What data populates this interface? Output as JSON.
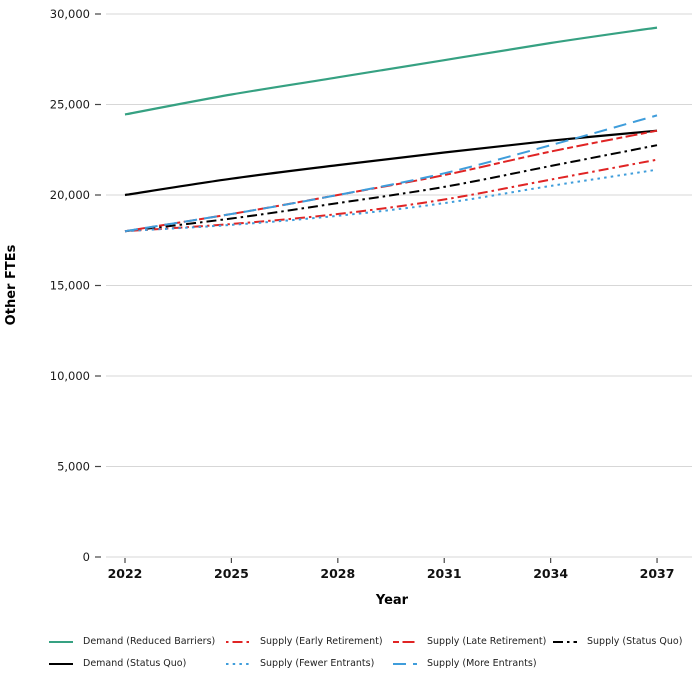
{
  "chart_data": {
    "type": "line",
    "title": "",
    "xlabel": "Year",
    "ylabel": "Other FTEs",
    "x": [
      2022,
      2025,
      2028,
      2031,
      2034,
      2037
    ],
    "x_tick_labels": [
      "2022",
      "2025",
      "2028",
      "2031",
      "2034",
      "2037"
    ],
    "y_ticks": [
      0,
      5000,
      10000,
      15000,
      20000,
      25000,
      30000
    ],
    "y_tick_labels": [
      "0",
      "5,000",
      "10,000",
      "15,000",
      "20,000",
      "25,000",
      "30,000"
    ],
    "xlim": [
      2021.5,
      2038
    ],
    "ylim": [
      0,
      30000
    ],
    "grid": "horizontal-only",
    "legend_position": "bottom",
    "series": [
      {
        "name": "Demand (Reduced Barriers)",
        "color": "#36a182",
        "linestyle": "solid",
        "values": [
          24450,
          25550,
          26500,
          27450,
          28400,
          29250
        ]
      },
      {
        "name": "Supply (Early Retirement)",
        "color": "#e02424",
        "linestyle": "dotdash",
        "values": [
          18000,
          18400,
          18950,
          19750,
          20850,
          21950
        ]
      },
      {
        "name": "Supply (Late Retirement)",
        "color": "#e02424",
        "linestyle": "twodash",
        "values": [
          18000,
          18950,
          20000,
          21100,
          22400,
          23550
        ]
      },
      {
        "name": "Supply (Status Quo)",
        "color": "#000000",
        "linestyle": "dashdot",
        "values": [
          18000,
          18700,
          19550,
          20450,
          21600,
          22750
        ]
      },
      {
        "name": "Demand (Status Quo)",
        "color": "#000000",
        "linestyle": "solid",
        "values": [
          20000,
          20900,
          21650,
          22350,
          23000,
          23550
        ]
      },
      {
        "name": "Supply (Fewer Entrants)",
        "color": "#3f9ddb",
        "linestyle": "dotted",
        "values": [
          18000,
          18350,
          18850,
          19550,
          20500,
          21400
        ]
      },
      {
        "name": "Supply (More Entrants)",
        "color": "#3f9ddb",
        "linestyle": "longdash",
        "values": [
          18000,
          18950,
          20000,
          21200,
          22750,
          24400
        ]
      }
    ]
  },
  "legend": {
    "rows": [
      [
        "Demand (Reduced Barriers)",
        "Supply (Early Retirement)",
        "Supply (Late Retirement)",
        "Supply (Status Quo)"
      ],
      [
        "Demand (Status Quo)",
        "Supply (Fewer Entrants)",
        "Supply (More Entrants)"
      ]
    ]
  },
  "colors": {
    "gridline": "#d7d7d7",
    "tick": "#444444",
    "green": "#36a182",
    "red": "#e02424",
    "blue": "#3f9ddb",
    "black": "#000000"
  }
}
